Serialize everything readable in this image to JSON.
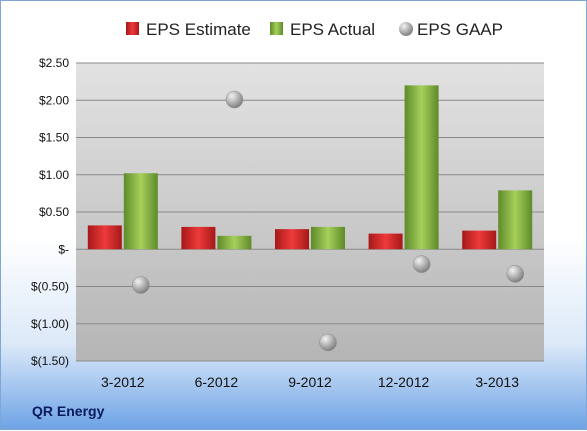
{
  "company": "QR Energy",
  "chart_data": {
    "type": "bar",
    "categories": [
      "3-2012",
      "6-2012",
      "9-2012",
      "12-2012",
      "3-2013"
    ],
    "series": [
      {
        "name": "EPS Estimate",
        "type": "bar",
        "color": "#d42a2a",
        "values": [
          0.32,
          0.3,
          0.27,
          0.21,
          0.25
        ]
      },
      {
        "name": "EPS Actual",
        "type": "bar",
        "color": "#8db845",
        "values": [
          1.02,
          0.18,
          0.3,
          2.2,
          0.79
        ]
      },
      {
        "name": "EPS GAAP",
        "type": "scatter",
        "color": "#a8a8a8",
        "values": [
          -0.48,
          2.01,
          -1.25,
          -0.2,
          -0.33
        ]
      }
    ],
    "y_ticks": [
      "$2.50",
      "$2.00",
      "$1.50",
      "$1.00",
      "$0.50",
      "$-",
      "$(0.50)",
      "$(1.00)",
      "$(1.50)"
    ],
    "ylim": [
      -1.5,
      2.5
    ],
    "grid": true,
    "legend_position": "top"
  }
}
